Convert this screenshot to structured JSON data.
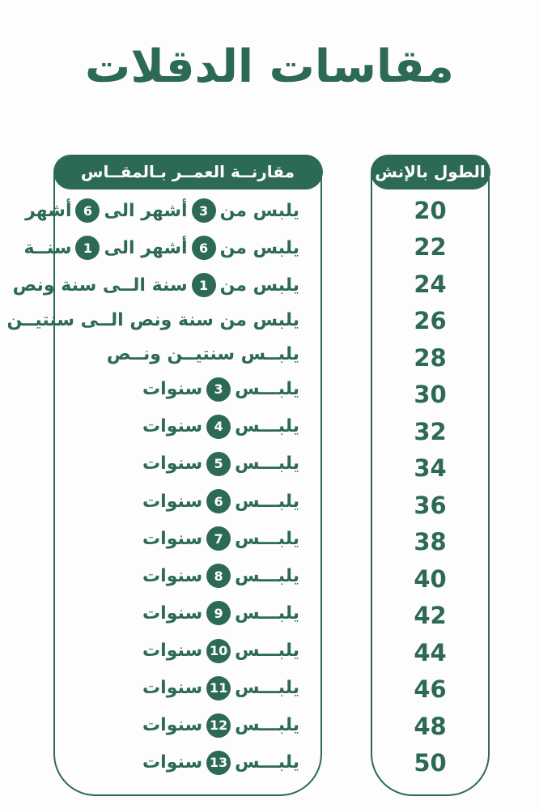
{
  "title": "مقاسات الدقلات",
  "colors": {
    "green": "#2d6a54",
    "white": "#ffffff",
    "background": "#fdfdfc"
  },
  "age_panel": {
    "header": "مقارنــة العمــر بـالمقــاس",
    "rows": [
      {
        "segments": [
          {
            "type": "text",
            "value": "يلبس من"
          },
          {
            "type": "badge",
            "value": "3"
          },
          {
            "type": "text",
            "value": "أشهر الى"
          },
          {
            "type": "badge",
            "value": "6"
          },
          {
            "type": "text",
            "value": "أشهر"
          }
        ]
      },
      {
        "segments": [
          {
            "type": "text",
            "value": "يلبس من"
          },
          {
            "type": "badge",
            "value": "6"
          },
          {
            "type": "text",
            "value": "أشهر الى"
          },
          {
            "type": "badge",
            "value": "1"
          },
          {
            "type": "text",
            "value": "سنــة"
          }
        ]
      },
      {
        "segments": [
          {
            "type": "text",
            "value": "يلبس من"
          },
          {
            "type": "badge",
            "value": "1"
          },
          {
            "type": "text",
            "value": "سنة الــى سنة ونص"
          }
        ]
      },
      {
        "segments": [
          {
            "type": "text",
            "value": "يلبس من سنة ونص الــى  سنتيــن"
          }
        ]
      },
      {
        "segments": [
          {
            "type": "text",
            "value": "يلبــس سنتيــن ونــص"
          }
        ]
      },
      {
        "segments": [
          {
            "type": "text",
            "value": "يلبـــس"
          },
          {
            "type": "badge",
            "value": "3"
          },
          {
            "type": "text",
            "value": "سنوات"
          }
        ]
      },
      {
        "segments": [
          {
            "type": "text",
            "value": "يلبـــس"
          },
          {
            "type": "badge",
            "value": "4"
          },
          {
            "type": "text",
            "value": "سنوات"
          }
        ]
      },
      {
        "segments": [
          {
            "type": "text",
            "value": "يلبـــس"
          },
          {
            "type": "badge",
            "value": "5"
          },
          {
            "type": "text",
            "value": "سنوات"
          }
        ]
      },
      {
        "segments": [
          {
            "type": "text",
            "value": "يلبـــس"
          },
          {
            "type": "badge",
            "value": "6"
          },
          {
            "type": "text",
            "value": "سنوات"
          }
        ]
      },
      {
        "segments": [
          {
            "type": "text",
            "value": "يلبـــس"
          },
          {
            "type": "badge",
            "value": "7"
          },
          {
            "type": "text",
            "value": "سنوات"
          }
        ]
      },
      {
        "segments": [
          {
            "type": "text",
            "value": "يلبـــس"
          },
          {
            "type": "badge",
            "value": "8"
          },
          {
            "type": "text",
            "value": "سنوات"
          }
        ]
      },
      {
        "segments": [
          {
            "type": "text",
            "value": "يلبـــس"
          },
          {
            "type": "badge",
            "value": "9"
          },
          {
            "type": "text",
            "value": "سنوات"
          }
        ]
      },
      {
        "segments": [
          {
            "type": "text",
            "value": "يلبـــس"
          },
          {
            "type": "badge",
            "value": "10"
          },
          {
            "type": "text",
            "value": "سنوات"
          }
        ]
      },
      {
        "segments": [
          {
            "type": "text",
            "value": "يلبـــس"
          },
          {
            "type": "badge",
            "value": "11"
          },
          {
            "type": "text",
            "value": "سنوات"
          }
        ]
      },
      {
        "segments": [
          {
            "type": "text",
            "value": "يلبـــس"
          },
          {
            "type": "badge",
            "value": "12"
          },
          {
            "type": "text",
            "value": "سنوات"
          }
        ]
      },
      {
        "segments": [
          {
            "type": "text",
            "value": "يلبـــس"
          },
          {
            "type": "badge",
            "value": "13"
          },
          {
            "type": "text",
            "value": "سنوات"
          }
        ]
      }
    ]
  },
  "length_panel": {
    "header": "الطول بالإنش",
    "values": [
      "20",
      "22",
      "24",
      "26",
      "28",
      "30",
      "32",
      "34",
      "36",
      "38",
      "40",
      "42",
      "44",
      "46",
      "48",
      "50"
    ]
  }
}
